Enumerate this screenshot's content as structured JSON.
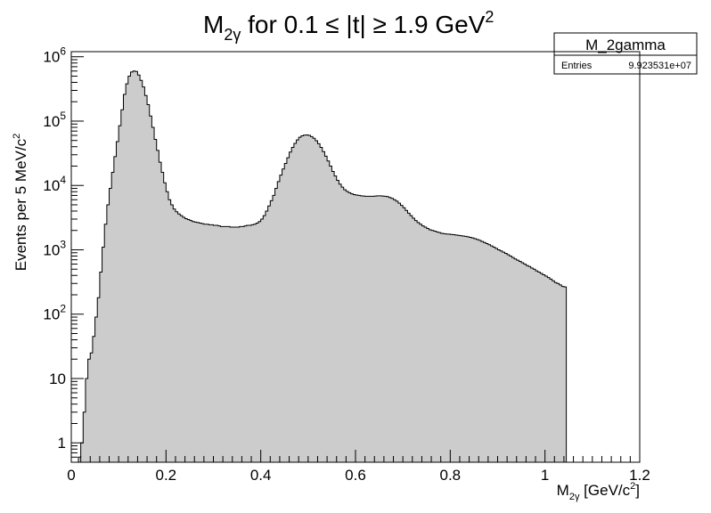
{
  "title": {
    "base": "M",
    "sub": "2γ",
    "middle": " for 0.1 ≤ |t| ≥ 1.9 GeV",
    "sup": "2"
  },
  "stats_box": {
    "name": "M_2gamma",
    "entries_label": "Entries",
    "entries_value": "9.923531e+07"
  },
  "chart_data": {
    "type": "area",
    "title": "M2γ for 0.1 ≤ |t| ≥ 1.9 GeV2",
    "xlabel": "M2γ [GeV/c2]",
    "ylabel": "Events per 5 MeV/c2",
    "xlim": [
      0,
      1.2
    ],
    "ylim": [
      0.5,
      1200000
    ],
    "y_scale": "log",
    "fill_color": "#cccccc",
    "line_color": "#000000",
    "x_ticks": [
      {
        "v": 0,
        "label": "0"
      },
      {
        "v": 0.2,
        "label": "0.2"
      },
      {
        "v": 0.4,
        "label": "0.4"
      },
      {
        "v": 0.6,
        "label": "0.6"
      },
      {
        "v": 0.8,
        "label": "0.8"
      },
      {
        "v": 1.0,
        "label": "1"
      },
      {
        "v": 1.2,
        "label": "1.2"
      }
    ],
    "y_ticks": [
      {
        "v": 1,
        "base": "1",
        "exp": ""
      },
      {
        "v": 10,
        "base": "10",
        "exp": ""
      },
      {
        "v": 100,
        "base": "10",
        "exp": "2"
      },
      {
        "v": 1000,
        "base": "10",
        "exp": "3"
      },
      {
        "v": 10000,
        "base": "10",
        "exp": "4"
      },
      {
        "v": 100000,
        "base": "10",
        "exp": "5"
      },
      {
        "v": 1000000,
        "base": "10",
        "exp": "6"
      }
    ],
    "xlabel_parts": {
      "base": "M",
      "sub": "2γ",
      "rest": " [GeV/c",
      "sup": "2",
      "end": "]"
    },
    "ylabel_parts": {
      "base": "Events per 5 MeV/c",
      "sup": "2"
    },
    "bin_width": 0.005,
    "x_start": 0.0,
    "values": [
      0.3,
      0.3,
      0.3,
      0.6,
      1.0,
      3,
      10,
      20,
      25,
      45,
      90,
      180,
      450,
      1100,
      2500,
      5000,
      9000,
      16000,
      28000,
      48000,
      85000,
      150000,
      260000,
      380000,
      500000,
      580000,
      600000,
      590000,
      520000,
      430000,
      340000,
      250000,
      180000,
      120000,
      80000,
      52000,
      35000,
      23000,
      16000,
      11000,
      8000,
      6000,
      5000,
      4300,
      3900,
      3600,
      3400,
      3200,
      3050,
      2950,
      2850,
      2750,
      2700,
      2650,
      2600,
      2550,
      2500,
      2500,
      2450,
      2450,
      2400,
      2400,
      2350,
      2300,
      2300,
      2300,
      2300,
      2250,
      2250,
      2250,
      2250,
      2300,
      2300,
      2350,
      2400,
      2400,
      2450,
      2500,
      2600,
      2750,
      3000,
      3400,
      4000,
      4800,
      5800,
      7000,
      9000,
      11500,
      14500,
      18000,
      22000,
      27000,
      33000,
      39000,
      45000,
      51000,
      56000,
      59000,
      60500,
      61000,
      60000,
      57500,
      54000,
      49500,
      44500,
      39000,
      33500,
      28500,
      24000,
      20000,
      16500,
      14000,
      12000,
      10500,
      9400,
      8600,
      8100,
      7700,
      7400,
      7200,
      7100,
      7000,
      6900,
      6850,
      6800,
      6800,
      6800,
      6800,
      6850,
      6900,
      6900,
      6850,
      6800,
      6700,
      6500,
      6300,
      6000,
      5700,
      5300,
      4900,
      4500,
      4100,
      3700,
      3400,
      3100,
      2850,
      2650,
      2500,
      2350,
      2250,
      2150,
      2050,
      2000,
      1950,
      1900,
      1850,
      1800,
      1780,
      1760,
      1750,
      1730,
      1720,
      1700,
      1680,
      1660,
      1640,
      1620,
      1590,
      1560,
      1530,
      1490,
      1450,
      1400,
      1350,
      1300,
      1250,
      1200,
      1150,
      1100,
      1050,
      1000,
      960,
      920,
      880,
      840,
      800,
      760,
      720,
      690,
      660,
      630,
      600,
      570,
      550,
      520,
      500,
      470,
      450,
      430,
      410,
      390,
      370,
      350,
      330,
      310,
      300,
      285,
      270,
      265
    ]
  }
}
